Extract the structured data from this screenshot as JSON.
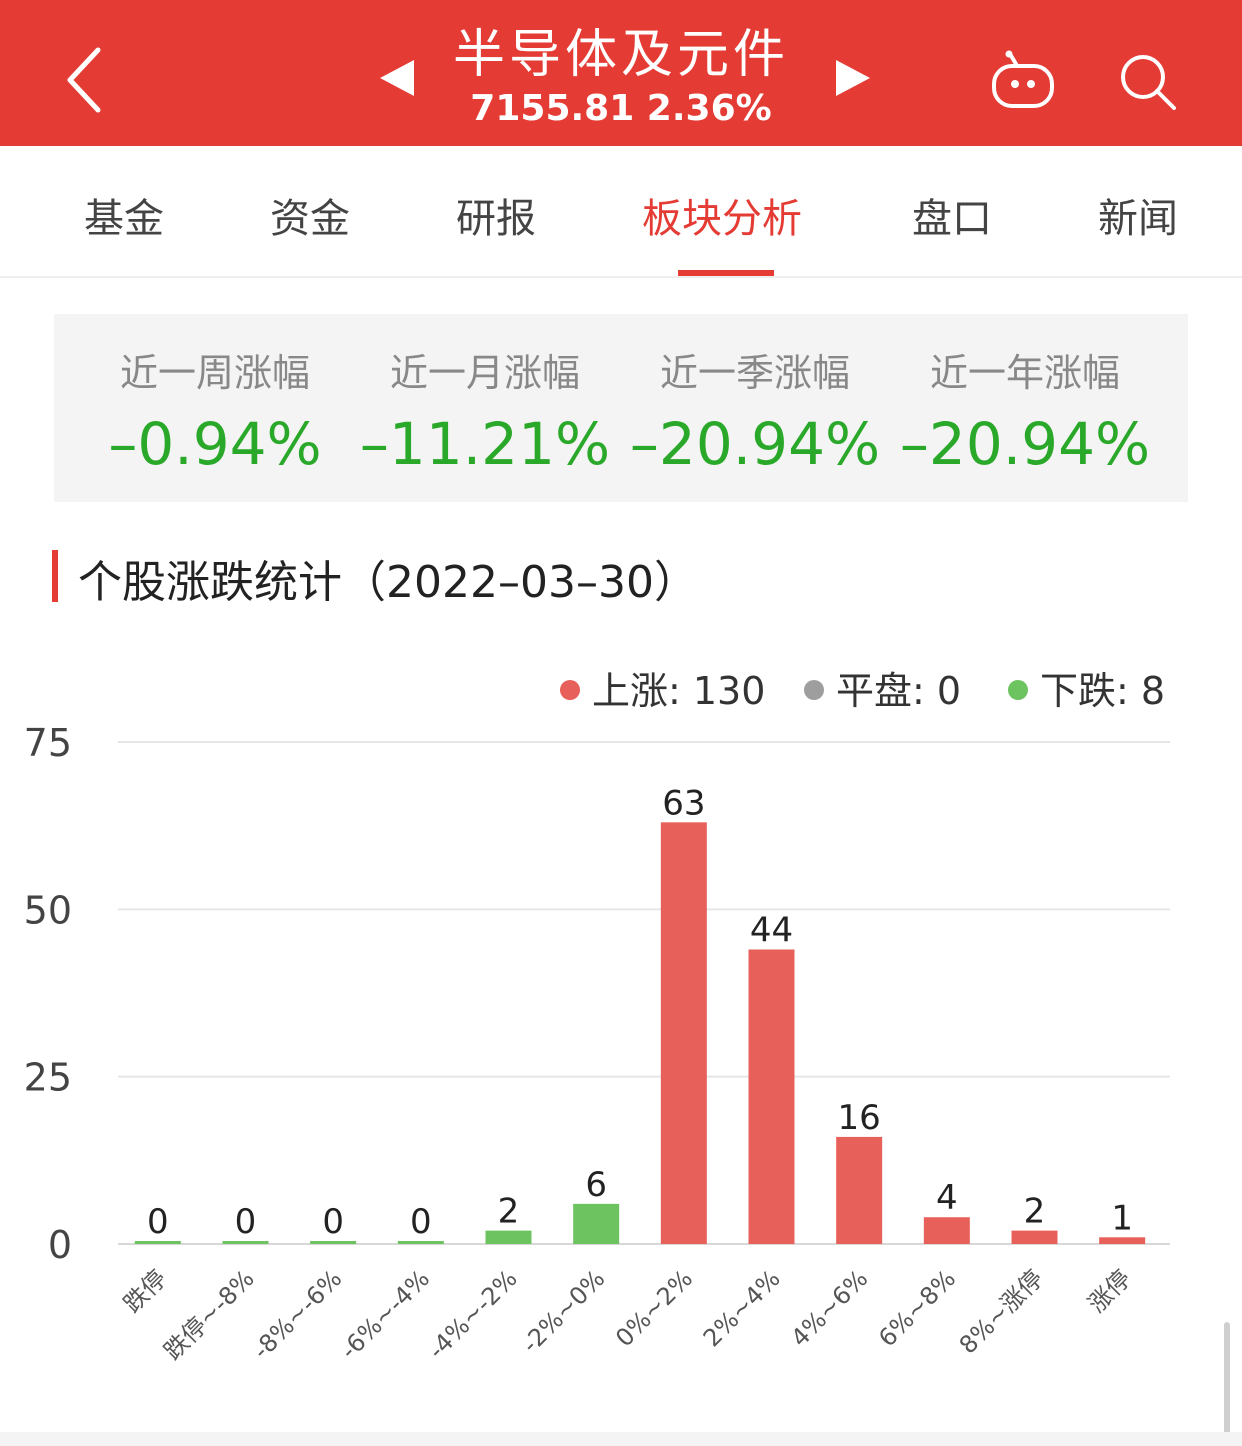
{
  "header": {
    "title": "半导体及元件",
    "subtitle": "7155.81 2.36%",
    "back_icon": "chevron-left-icon",
    "prev_icon": "triangle-left-icon",
    "next_icon": "triangle-right-icon",
    "robot_icon": "robot-icon",
    "search_icon": "search-icon",
    "bg_color": "#e53b35"
  },
  "tabs": [
    {
      "label": "基金"
    },
    {
      "label": "资金"
    },
    {
      "label": "研报"
    },
    {
      "label": "板块分析",
      "active": true
    },
    {
      "label": "盘口"
    },
    {
      "label": "新闻"
    }
  ],
  "performance": [
    {
      "label": "近一周涨幅",
      "value": "–0.94%"
    },
    {
      "label": "近一月涨幅",
      "value": "–11.21%"
    },
    {
      "label": "近一季涨幅",
      "value": "–20.94%"
    },
    {
      "label": "近一年涨幅",
      "value": "–20.94%"
    }
  ],
  "section": {
    "title": "个股涨跌统计（2022–03–30）"
  },
  "legend": [
    {
      "label": "上涨: 130",
      "color": "#e8605a"
    },
    {
      "label": "平盘: 0",
      "color": "#9e9e9e"
    },
    {
      "label": "下跌: 8",
      "color": "#6cc35f"
    }
  ],
  "chart_data": {
    "type": "bar",
    "categories": [
      "跌停",
      "跌停~-8%",
      "-8%~-6%",
      "-6%~-4%",
      "-4%~-2%",
      "-2%~0%",
      "0%~2%",
      "2%~4%",
      "4%~6%",
      "6%~8%",
      "8%~涨停",
      "涨停"
    ],
    "values": [
      0,
      0,
      0,
      0,
      2,
      6,
      63,
      44,
      16,
      4,
      2,
      1
    ],
    "yticks": [
      "0",
      "25",
      "50",
      "75"
    ],
    "ylim": [
      0,
      75
    ],
    "grid": true,
    "legend_position": "top-right",
    "down_color": "#6cc35f",
    "up_color": "#e8605a"
  }
}
